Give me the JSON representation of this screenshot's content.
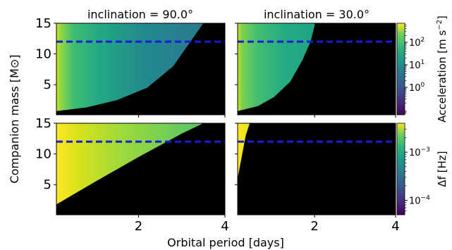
{
  "chart_data": {
    "type": "heatmap",
    "xlabel": "Orbital period [days]",
    "ylabel": "Companion mass [M⊙]",
    "x_range": [
      0.1,
      4.0
    ],
    "y_range": [
      0.1,
      15
    ],
    "xticks": [
      2,
      4
    ],
    "yticks": [
      5,
      10,
      15
    ],
    "reference_line": {
      "y": 12,
      "style": "dashed",
      "color": "#1a1adb"
    },
    "panels": [
      {
        "row": 0,
        "col": 0,
        "title": "inclination = 90.0°",
        "quantity": "acceleration",
        "boundary": {
          "period_days": [
            0.1,
            0.8,
            1.5,
            2.2,
            2.8,
            3.2,
            3.5
          ],
          "mass_msun": [
            0.7,
            1.3,
            2.5,
            4.5,
            8,
            12,
            15
          ]
        }
      },
      {
        "row": 0,
        "col": 1,
        "title": "inclination = 30.0°",
        "quantity": "acceleration",
        "boundary": {
          "period_days": [
            0.1,
            0.6,
            1.0,
            1.4,
            1.7,
            1.9,
            2.0
          ],
          "mass_msun": [
            0.7,
            1.5,
            3,
            5.5,
            9,
            12,
            14.6
          ]
        }
      },
      {
        "row": 1,
        "col": 0,
        "title": "",
        "quantity": "delta_f",
        "boundary": {
          "period_days": [
            0.1,
            1.0,
            2.0,
            3.0,
            3.5
          ],
          "mass_msun": [
            1.8,
            5.5,
            9.5,
            13.3,
            15
          ]
        }
      },
      {
        "row": 1,
        "col": 1,
        "title": "",
        "quantity": "delta_f",
        "boundary": {
          "period_days": [
            0.1,
            0.2,
            0.3,
            0.4
          ],
          "mass_msun": [
            6,
            9.5,
            13,
            15
          ]
        }
      }
    ],
    "colorbars": [
      {
        "label": "Acceleration [m s⁻²]",
        "label_main": "Acceleration [m s",
        "label_sup": "−2",
        "label_end": "]",
        "scale": "log",
        "range": [
          0.06,
          700
        ],
        "ticks": [
          {
            "value": 1,
            "base": "10",
            "exp": "0"
          },
          {
            "value": 10,
            "base": "10",
            "exp": "1"
          },
          {
            "value": 100,
            "base": "10",
            "exp": "2"
          }
        ]
      },
      {
        "label": "Δf [Hz]",
        "label_main": "Δf [Hz]",
        "label_sup": "",
        "label_end": "",
        "scale": "log",
        "range": [
          5e-05,
          0.004
        ],
        "ticks": [
          {
            "value": 0.0001,
            "base": "10",
            "exp": "−4"
          },
          {
            "value": 0.001,
            "base": "10",
            "exp": "−3"
          }
        ]
      }
    ],
    "colormap": [
      "#440154",
      "#3b528b",
      "#21918c",
      "#5ec962",
      "#fde725"
    ],
    "masked_color": "#000000"
  }
}
